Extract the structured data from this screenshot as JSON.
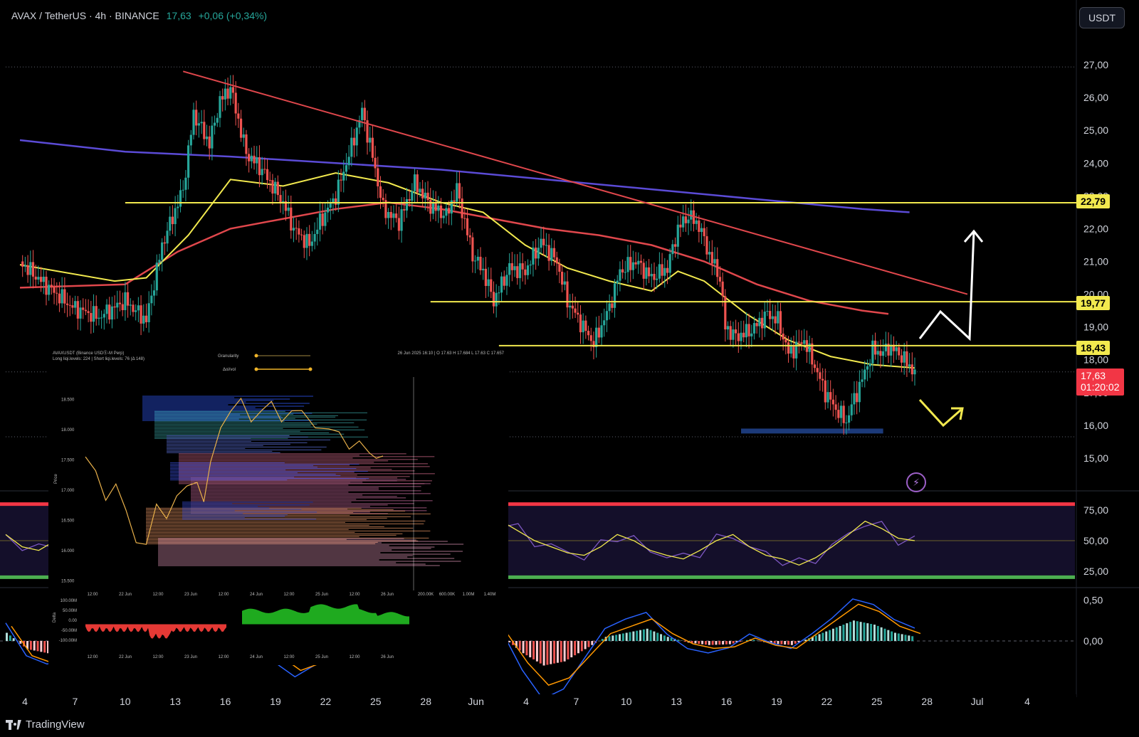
{
  "header": {
    "symbol": "AVAX / TetherUS · 4h · BINANCE",
    "price": "17,63",
    "change": "+0,06 (+0,34%)"
  },
  "currency_button": "USDT",
  "branding": "TradingView",
  "colors": {
    "background": "#000000",
    "up": "#26a69a",
    "down": "#ef5350",
    "level": "#f2e94e",
    "trendline": "#e0474c",
    "ma_fast": "#f2e94e",
    "ma_mid": "#e0474c",
    "ma_slow": "#5b4bd6"
  },
  "price_tags": {
    "level1": "22,79",
    "level2": "19,77",
    "level3": "18,43",
    "last_price": "17,63",
    "countdown": "01:20:02"
  },
  "icons": {
    "alert": "lightning-icon"
  },
  "chart_data": [
    {
      "type": "candlestick",
      "ylim": [
        14.0,
        28.0
      ],
      "yticks": [
        "15,00",
        "16,00",
        "17,00",
        "18,00",
        "19,00",
        "20,00",
        "21,00",
        "22,00",
        "23,00",
        "24,00",
        "25,00",
        "26,00",
        "27,00"
      ],
      "xticks": [
        "4",
        "7",
        "10",
        "13",
        "16",
        "19",
        "22",
        "25",
        "28",
        "Jun",
        "4",
        "7",
        "10",
        "13",
        "16",
        "19",
        "22",
        "25",
        "28",
        "Jul",
        "4"
      ],
      "price_path": [
        [
          0,
          21.0
        ],
        [
          4,
          20.4
        ],
        [
          10,
          19.6
        ],
        [
          15,
          19.3
        ],
        [
          20,
          19.8
        ],
        [
          24,
          19.2
        ],
        [
          27,
          21.5
        ],
        [
          31,
          23.2
        ],
        [
          33,
          25.5
        ],
        [
          36,
          24.6
        ],
        [
          38,
          25.9
        ],
        [
          40,
          26.3
        ],
        [
          43,
          24.3
        ],
        [
          46,
          23.8
        ],
        [
          50,
          22.8
        ],
        [
          52,
          22.0
        ],
        [
          55,
          21.5
        ],
        [
          57,
          22.2
        ],
        [
          60,
          23.0
        ],
        [
          63,
          24.5
        ],
        [
          65,
          25.6
        ],
        [
          67,
          24.2
        ],
        [
          69,
          22.6
        ],
        [
          72,
          22.2
        ],
        [
          75,
          23.4
        ],
        [
          78,
          22.7
        ],
        [
          81,
          22.4
        ],
        [
          83,
          23.2
        ],
        [
          86,
          21.2
        ],
        [
          88,
          20.7
        ],
        [
          90,
          19.8
        ],
        [
          93,
          20.8
        ],
        [
          96,
          20.7
        ],
        [
          99,
          21.6
        ],
        [
          102,
          21.0
        ],
        [
          104,
          19.8
        ],
        [
          107,
          19.0
        ],
        [
          109,
          18.5
        ],
        [
          112,
          19.6
        ],
        [
          114,
          20.7
        ],
        [
          117,
          21.0
        ],
        [
          120,
          20.5
        ],
        [
          123,
          20.8
        ],
        [
          125,
          22.0
        ],
        [
          127,
          22.4
        ],
        [
          129,
          22.1
        ],
        [
          131,
          21.2
        ],
        [
          133,
          20.5
        ],
        [
          134,
          19.0
        ],
        [
          136,
          18.7
        ],
        [
          139,
          18.9
        ],
        [
          142,
          19.4
        ],
        [
          144,
          19.2
        ],
        [
          146,
          18.2
        ],
        [
          149,
          18.6
        ],
        [
          151,
          17.8
        ],
        [
          153,
          17.0
        ],
        [
          155,
          16.5
        ],
        [
          157,
          16.1
        ],
        [
          158,
          16.6
        ],
        [
          160,
          17.4
        ],
        [
          162,
          18.3
        ],
        [
          164,
          18.2
        ],
        [
          165,
          18.4
        ],
        [
          167,
          18.2
        ],
        [
          169,
          17.8
        ],
        [
          170,
          17.63
        ]
      ],
      "levels": [
        22.79,
        19.77,
        18.43
      ],
      "trendline": [
        [
          31,
          26.8
        ],
        [
          180,
          20.0
        ]
      ],
      "ma_fast_path": [
        [
          0,
          20.9
        ],
        [
          18,
          20.4
        ],
        [
          24,
          20.5
        ],
        [
          32,
          21.8
        ],
        [
          40,
          23.5
        ],
        [
          50,
          23.3
        ],
        [
          60,
          23.7
        ],
        [
          70,
          23.4
        ],
        [
          80,
          22.8
        ],
        [
          88,
          22.5
        ],
        [
          96,
          21.5
        ],
        [
          104,
          20.8
        ],
        [
          112,
          20.4
        ],
        [
          120,
          20.1
        ],
        [
          125,
          20.7
        ],
        [
          130,
          20.4
        ],
        [
          138,
          19.4
        ],
        [
          146,
          18.6
        ],
        [
          154,
          18.1
        ],
        [
          162,
          17.85
        ],
        [
          170,
          17.75
        ]
      ],
      "ma_mid_path": [
        [
          0,
          20.2
        ],
        [
          20,
          20.3
        ],
        [
          30,
          21.3
        ],
        [
          40,
          22.0
        ],
        [
          50,
          22.3
        ],
        [
          60,
          22.6
        ],
        [
          70,
          22.8
        ],
        [
          80,
          22.6
        ],
        [
          90,
          22.3
        ],
        [
          100,
          22.0
        ],
        [
          110,
          21.8
        ],
        [
          120,
          21.5
        ],
        [
          130,
          21.0
        ],
        [
          140,
          20.3
        ],
        [
          150,
          19.8
        ],
        [
          160,
          19.5
        ],
        [
          165,
          19.4
        ]
      ],
      "ma_slow_path": [
        [
          0,
          24.7
        ],
        [
          20,
          24.35
        ],
        [
          40,
          24.2
        ],
        [
          60,
          24.0
        ],
        [
          80,
          23.8
        ],
        [
          100,
          23.5
        ],
        [
          120,
          23.2
        ],
        [
          140,
          22.9
        ],
        [
          160,
          22.6
        ],
        [
          169,
          22.5
        ]
      ],
      "demand_zone": [
        15.75,
        15.9
      ],
      "scenario_arrows": [
        "bullish",
        "bearish"
      ]
    },
    {
      "type": "line",
      "name": "RSI",
      "yticks": [
        "75,00",
        "50,00",
        "25,00"
      ],
      "ylim": [
        15,
        85
      ],
      "bands": [
        80,
        20
      ],
      "values": [
        55,
        45,
        42,
        50,
        58,
        60,
        52,
        48,
        55,
        62,
        58,
        50,
        45,
        40,
        50,
        55,
        60,
        65,
        55,
        42,
        35,
        40,
        48,
        55,
        60,
        52,
        45,
        48,
        55,
        60,
        66,
        58,
        50,
        45,
        40,
        38,
        45,
        55,
        50,
        42,
        38,
        35,
        42,
        50,
        55,
        45,
        38,
        35,
        30,
        36,
        45,
        55,
        66,
        60,
        52,
        50
      ]
    },
    {
      "type": "bar",
      "name": "MACD",
      "yticks": [
        "0,50",
        "0,00"
      ],
      "ylim": [
        -0.6,
        0.6
      ],
      "histogram": [
        0.1,
        -0.1,
        -0.15,
        -0.12,
        0.05,
        0.12,
        0.08,
        -0.05,
        -0.1,
        0.05,
        0.12,
        0.15,
        0.08,
        -0.1,
        -0.2,
        -0.15,
        -0.05,
        0.1,
        0.2,
        0.15,
        0.05,
        -0.05,
        0.02,
        0.1,
        0.05,
        -0.15,
        -0.3,
        -0.25,
        -0.1,
        0.05,
        0.1,
        0.15,
        0.05,
        -0.02,
        -0.05,
        -0.04,
        0.02,
        -0.03,
        -0.05,
        0.05,
        0.15,
        0.25,
        0.2,
        0.1,
        0.05
      ]
    },
    {
      "type": "heatmap",
      "name": "liquidation-levels-inset",
      "header_left": "AVAXUSDT (Binance USDⓈ-M Perp)",
      "header_left2": "Long liqi.levels: 224 | Short liqi.levels: 76 (Δ 148)",
      "header_right": "26 Jun 2025 16:10 | O 17.63 H 17.684 L 17.63 C 17.657",
      "slider1_label": "Granularity",
      "slider2_label": "Δoi/vol",
      "yticks": [
        "18.500",
        "18.000",
        "17.500",
        "17.000",
        "16.500",
        "16.000",
        "15.500"
      ],
      "ylabel": "Price",
      "xticks": [
        "12:00",
        "22 Jun",
        "12:00",
        "23 Jun",
        "12:00",
        "24 Jun",
        "12:00",
        "25 Jun",
        "12:00",
        "26 Jun"
      ],
      "right_xticks": [
        "200.00K",
        "600.00K",
        "1.00M",
        "1.40M"
      ],
      "delta_yticks": [
        "100.00M",
        "50.00M",
        "0.00",
        "-50.00M",
        "-100.00M"
      ],
      "delta_ylabel": "Delta"
    }
  ]
}
